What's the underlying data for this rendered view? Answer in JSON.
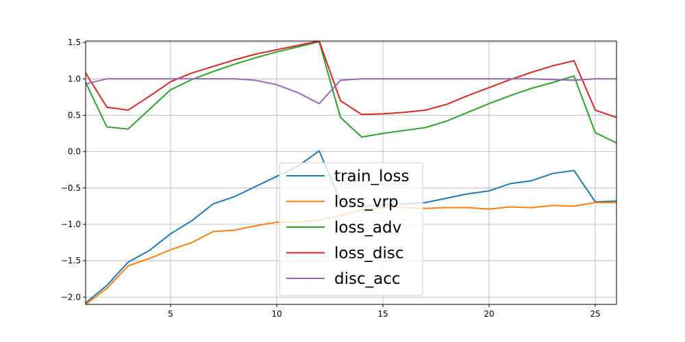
{
  "chart_data": {
    "type": "line",
    "title": "",
    "xlabel": "",
    "ylabel": "",
    "xlim": [
      1,
      26
    ],
    "ylim": [
      -2.1,
      1.52
    ],
    "grid": true,
    "legend_placement": "lower center",
    "x": [
      1,
      2,
      3,
      4,
      5,
      6,
      7,
      8,
      9,
      10,
      11,
      12,
      13,
      14,
      15,
      16,
      17,
      18,
      19,
      20,
      21,
      22,
      23,
      24,
      25,
      26
    ],
    "x_ticks": [
      5,
      10,
      15,
      20,
      25
    ],
    "x_tick_labels": [
      "5",
      "10",
      "15",
      "20",
      "25"
    ],
    "y_ticks": [
      -2.0,
      -1.5,
      -1.0,
      -0.5,
      0.0,
      0.5,
      1.0,
      1.5
    ],
    "y_tick_labels": [
      "−2.0",
      "−1.5",
      "−1.0",
      "−0.5",
      "0.0",
      "0.5",
      "1.0",
      "1.5"
    ],
    "series": [
      {
        "name": "train_loss",
        "color": "#1f77b4",
        "values": [
          -2.08,
          -1.84,
          -1.52,
          -1.36,
          -1.13,
          -0.95,
          -0.72,
          -0.62,
          -0.48,
          -0.34,
          -0.2,
          0.01,
          -0.68,
          -0.76,
          -0.73,
          -0.72,
          -0.7,
          -0.64,
          -0.58,
          -0.54,
          -0.44,
          -0.4,
          -0.3,
          -0.26,
          -0.69,
          -0.68
        ]
      },
      {
        "name": "loss_vrp",
        "color": "#ff7f0e",
        "values": [
          -2.1,
          -1.88,
          -1.57,
          -1.47,
          -1.35,
          -1.25,
          -1.1,
          -1.08,
          -1.02,
          -0.97,
          -0.97,
          -0.94,
          -0.88,
          -0.8,
          -0.77,
          -0.77,
          -0.78,
          -0.77,
          -0.77,
          -0.79,
          -0.76,
          -0.77,
          -0.74,
          -0.75,
          -0.7,
          -0.7
        ]
      },
      {
        "name": "loss_adv",
        "color": "#2ca02c",
        "values": [
          0.95,
          0.34,
          0.31,
          0.58,
          0.85,
          0.99,
          1.1,
          1.2,
          1.29,
          1.37,
          1.44,
          1.51,
          0.47,
          0.2,
          0.25,
          0.29,
          0.33,
          0.42,
          0.54,
          0.66,
          0.77,
          0.87,
          0.95,
          1.04,
          0.26,
          0.12
        ]
      },
      {
        "name": "loss_disc",
        "color": "#d62728",
        "values": [
          1.08,
          0.61,
          0.57,
          0.76,
          0.96,
          1.08,
          1.17,
          1.26,
          1.34,
          1.4,
          1.46,
          1.52,
          0.7,
          0.51,
          0.52,
          0.54,
          0.57,
          0.65,
          0.77,
          0.88,
          0.99,
          1.09,
          1.18,
          1.25,
          0.57,
          0.47
        ]
      },
      {
        "name": "disc_acc",
        "color": "#9467bd",
        "values": [
          0.93,
          1.0,
          1.0,
          1.0,
          1.0,
          1.0,
          1.0,
          1.0,
          0.98,
          0.92,
          0.81,
          0.66,
          0.98,
          1.0,
          1.0,
          1.0,
          1.0,
          1.0,
          1.0,
          1.0,
          1.0,
          1.0,
          0.99,
          0.98,
          1.0,
          1.0
        ]
      }
    ]
  }
}
